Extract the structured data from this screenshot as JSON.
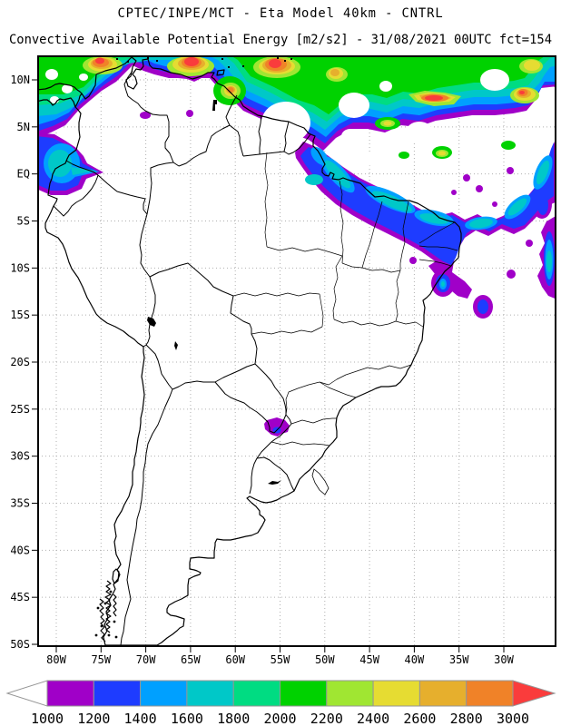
{
  "header": {
    "title_line1": "CPTEC/INPE/MCT -  Eta Model 40km - CNTRL",
    "title_line2": "Convective Available Potential Energy [m2/s2] - 31/08/2021 00UTC fct=154"
  },
  "axes": {
    "lat_labels": [
      "10N",
      "5N",
      "EQ",
      "5S",
      "10S",
      "15S",
      "20S",
      "25S",
      "30S",
      "35S",
      "40S",
      "45S",
      "50S"
    ],
    "lon_labels": [
      "80W",
      "75W",
      "70W",
      "65W",
      "60W",
      "55W",
      "50W",
      "45W",
      "40W",
      "35W",
      "30W"
    ]
  },
  "colorbar": {
    "tick_labels": [
      "1000",
      "1200",
      "1400",
      "1600",
      "1800",
      "2000",
      "2200",
      "2400",
      "2600",
      "2800",
      "3000"
    ],
    "colors": [
      "#A000C8",
      "#1E3CFF",
      "#00A0FF",
      "#00C8C8",
      "#00DC82",
      "#00D200",
      "#A0E632",
      "#E6DC32",
      "#E6AF2D",
      "#F08228",
      "#FA3C3C"
    ]
  },
  "chart_data": {
    "type": "heatmap",
    "title": "Convective Available Potential Energy [m2/s2]",
    "institution_model": "CPTEC/INPE/MCT - Eta Model 40km - CNTRL",
    "valid": "31/08/2021 00UTC fct=154",
    "units": "m2/s2",
    "levels": [
      1000,
      1200,
      1400,
      1600,
      1800,
      2000,
      2200,
      2400,
      2600,
      2800,
      3000
    ],
    "palette": [
      "#A000C8",
      "#1E3CFF",
      "#00A0FF",
      "#00C8C8",
      "#00DC82",
      "#00D200",
      "#A0E632",
      "#E6DC32",
      "#E6AF2D",
      "#F08228",
      "#FA3C3C"
    ],
    "lat_ticks": [
      "10N",
      "5N",
      "EQ",
      "5S",
      "10S",
      "15S",
      "20S",
      "25S",
      "30S",
      "35S",
      "40S",
      "45S",
      "50S"
    ],
    "lon_ticks": [
      "80W",
      "75W",
      "70W",
      "65W",
      "60W",
      "55W",
      "50W",
      "45W",
      "40W",
      "35W",
      "30W"
    ],
    "grid_interval_deg": 5,
    "legend_position": "bottom",
    "regions": [
      {
        "area": "Caribbean and tropical North Atlantic north of ~7N",
        "values": "1400-3000+ with maxima >3000 near 75W/12N, 67W/12N, 57W/12N, 41W-36W/8N and 28W/9N"
      },
      {
        "area": "Atlantic band offshore of the Guianas and Amazon mouth (55W-30W, 5N-3S)",
        "values": "1000-2600, cores 2200-2600 near 43W/1N and 41W/2S"
      },
      {
        "area": "Scattered cells off northeast Brazil (50W-24W, 3S-13S)",
        "values": "1000-1600"
      },
      {
        "area": "Eastern Pacific off Colombia/Panama (82W-77W, 2N-8N)",
        "values": "1000-1800"
      },
      {
        "area": "Isolated spot near 55W/27S (Misiones / south Brazil border)",
        "values": "1000-1400"
      },
      {
        "area": "Remainder of South America",
        "values": "below 1000 (white)"
      }
    ]
  }
}
